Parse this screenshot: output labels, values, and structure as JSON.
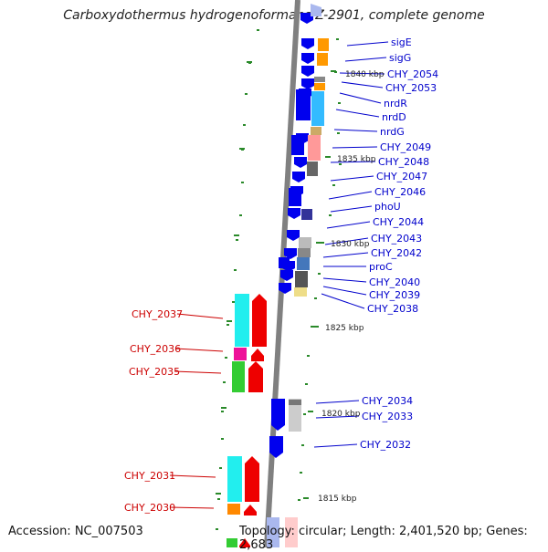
{
  "title": "Carboxydothermus hydrogenoformans Z-2901, complete genome",
  "accession": "Accession: NC_007503",
  "topology": "Topology: circular; Length: 2,401,520 bp; Genes: 2,683",
  "colors": {
    "backbone": "#808080",
    "forward_label": "#0000cc",
    "reverse_label": "#cc0000",
    "tick": "#2a8a2a",
    "forward_gene": "#0000ee",
    "reverse_gene": "#ee0000"
  },
  "scale_labels": [
    {
      "text": "1840 kbp",
      "kbp": 1840
    },
    {
      "text": "1835 kbp",
      "kbp": 1835
    },
    {
      "text": "1830 kbp",
      "kbp": 1830
    },
    {
      "text": "1825 kbp",
      "kbp": 1825
    },
    {
      "text": "1820 kbp",
      "kbp": 1820
    },
    {
      "text": "1815 kbp",
      "kbp": 1815
    }
  ],
  "forward_labels": [
    "sigE",
    "sigG",
    "CHY_2054",
    "CHY_2053",
    "nrdR",
    "nrdD",
    "nrdG",
    "CHY_2049",
    "CHY_2048",
    "CHY_2047",
    "CHY_2046",
    "phoU",
    "CHY_2044",
    "CHY_2043",
    "CHY_2042",
    "proC",
    "CHY_2040",
    "CHY_2039",
    "CHY_2038",
    "CHY_2034",
    "CHY_2033",
    "CHY_2032"
  ],
  "reverse_labels": [
    "CHY_2037",
    "CHY_2036",
    "CHY_2035",
    "CHY_2031",
    "CHY_2030"
  ]
}
